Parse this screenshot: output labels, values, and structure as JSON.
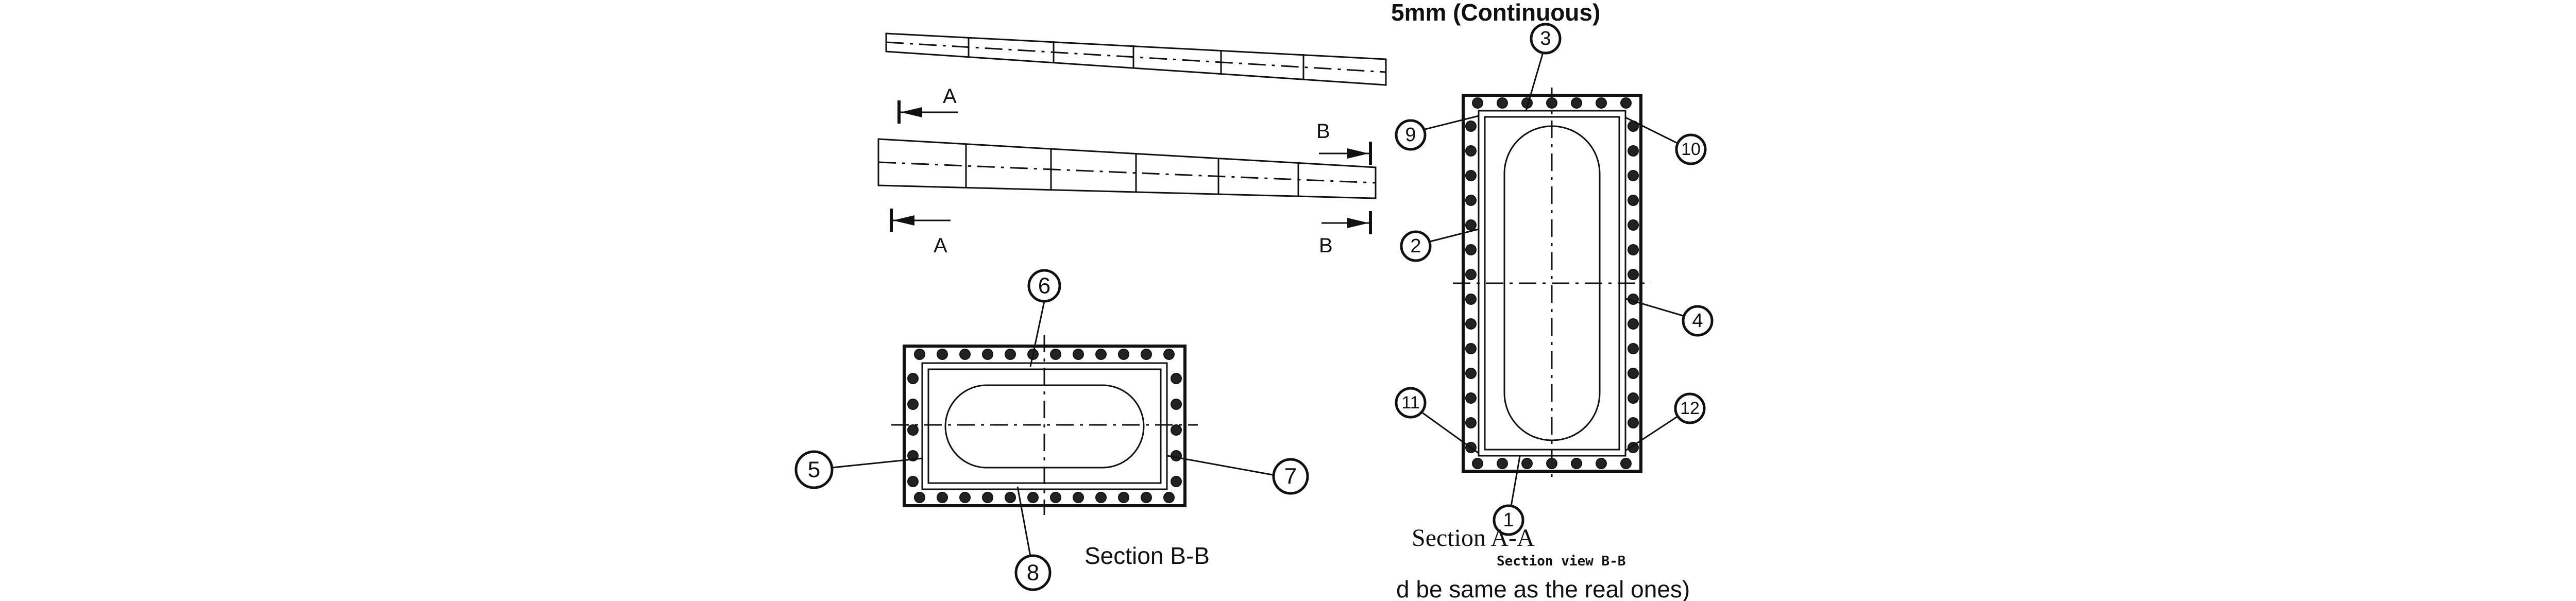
{
  "header_text": "5mm (Continuous)",
  "top_markers": {
    "a_upper": "A",
    "b_upper": "B",
    "a_lower": "A",
    "b_lower": "B"
  },
  "callouts": {
    "c1": "1",
    "c2": "2",
    "c3": "3",
    "c4": "4",
    "c5": "5",
    "c6": "6",
    "c7": "7",
    "c8": "8",
    "c9": "9",
    "c10": "10",
    "c11": "11",
    "c12": "12"
  },
  "section_bb_caption": "Section B-B",
  "section_aa_caption": "Section A-A",
  "section_view_caption": "Section view B-B",
  "footer_text": "d be same as the real ones)"
}
